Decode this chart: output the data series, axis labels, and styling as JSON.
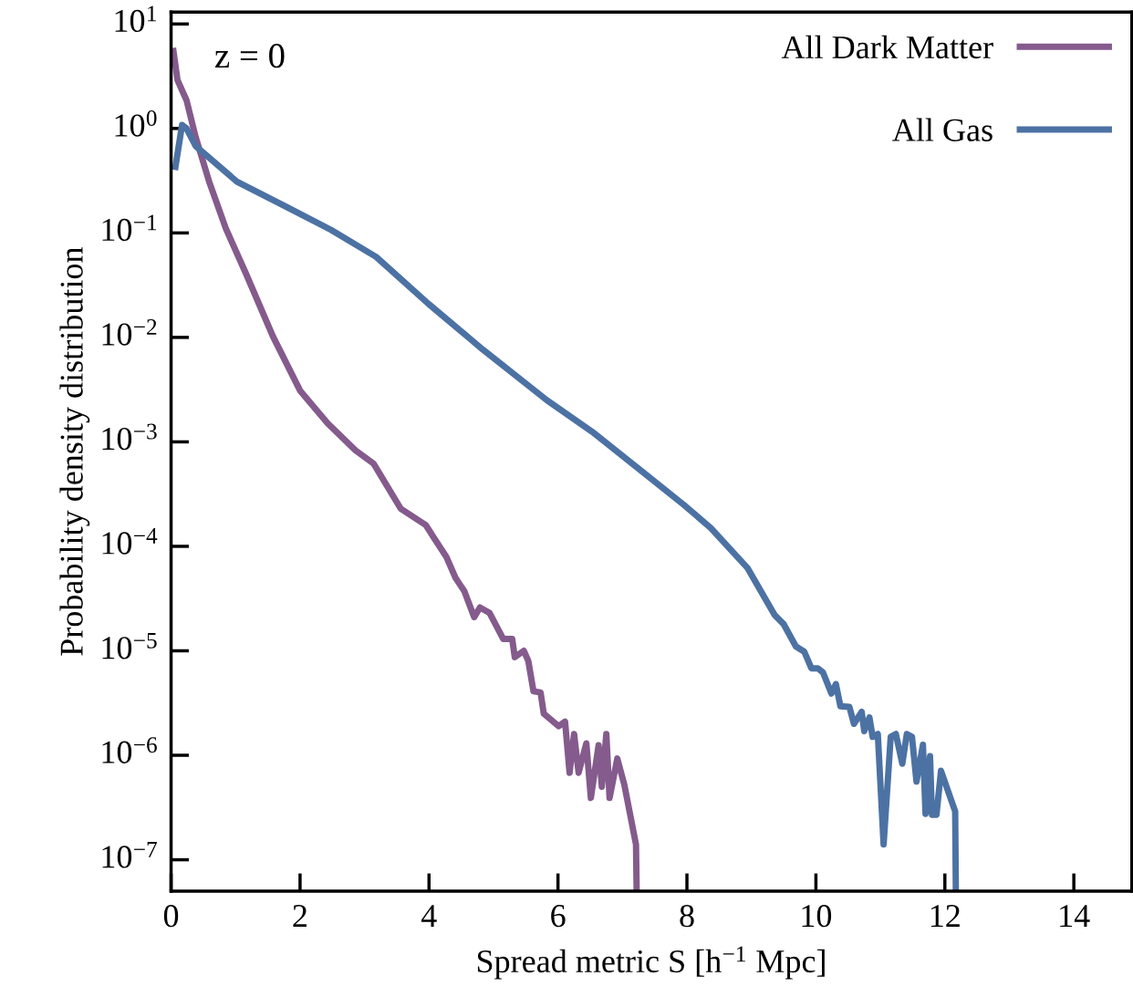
{
  "chart_data": {
    "type": "line",
    "xlabel": "Spread metric S [h$^{−1}$ Mpc]",
    "ylabel": "Probability density distribution",
    "annotations": [
      "z = 0"
    ],
    "log": "y",
    "xlim": [
      0,
      14.9
    ],
    "ylim": [
      5e-08,
      13
    ],
    "xticks": [
      0,
      2,
      4,
      6,
      8,
      10,
      12,
      14
    ],
    "yticks": [
      {
        "value": 1e-07,
        "label": "10$^{−7}$"
      },
      {
        "value": 1e-06,
        "label": "10$^{−6}$"
      },
      {
        "value": 1e-05,
        "label": "10$^{−5}$"
      },
      {
        "value": 0.0001,
        "label": "10$^{−4}$"
      },
      {
        "value": 0.001,
        "label": "10$^{−3}$"
      },
      {
        "value": 0.01,
        "label": "10$^{−2}$"
      },
      {
        "value": 0.1,
        "label": "10$^{−1}$"
      },
      {
        "value": 1,
        "label": "10$^{0}$"
      },
      {
        "value": 10,
        "label": "10$^{1}$"
      }
    ],
    "grid": false,
    "legend": "top right",
    "marker": "none",
    "line_style": "solid",
    "series": [
      {
        "name": "All Dark Matter",
        "color": "#845b8c",
        "x": [
          0.03,
          0.1,
          0.24,
          0.38,
          0.59,
          0.85,
          1.16,
          1.58,
          2.0,
          2.43,
          2.86,
          3.14,
          3.56,
          3.95,
          4.09,
          4.27,
          4.41,
          4.55,
          4.7,
          4.79,
          4.94,
          5.15,
          5.29,
          5.33,
          5.47,
          5.54,
          5.62,
          5.73,
          5.78,
          6.01,
          6.11,
          6.18,
          6.25,
          6.32,
          6.44,
          6.51,
          6.63,
          6.68,
          6.75,
          6.8,
          6.92,
          7.03,
          7.21,
          7.22
        ],
        "values": [
          5.9,
          2.9,
          1.86,
          0.83,
          0.31,
          0.11,
          0.041,
          0.0102,
          0.0031,
          0.0015,
          0.00083,
          0.00062,
          0.00023,
          0.00016,
          0.000117,
          7.9e-05,
          5e-05,
          3.7e-05,
          2.1e-05,
          2.6e-05,
          2.3e-05,
          1.3e-05,
          1.3e-05,
          8.7e-06,
          1e-05,
          8e-06,
          4.1e-06,
          4e-06,
          2.5e-06,
          1.9e-06,
          2.1e-06,
          6.8e-07,
          1.6e-06,
          6.8e-07,
          1.3e-06,
          3.9e-07,
          1.25e-06,
          5e-07,
          1.6e-06,
          3.9e-07,
          9.3e-07,
          5.2e-07,
          1.4e-07,
          5e-08
        ]
      },
      {
        "name": "All Gas",
        "color": "#4c72a4",
        "x": [
          0.06,
          0.17,
          0.24,
          0.38,
          1.02,
          1.77,
          2.48,
          3.18,
          3.99,
          4.84,
          5.83,
          6.53,
          7.24,
          7.95,
          8.37,
          8.94,
          9.36,
          9.5,
          9.69,
          9.82,
          9.93,
          10.03,
          10.11,
          10.24,
          10.31,
          10.38,
          10.52,
          10.59,
          10.71,
          10.75,
          10.83,
          10.88,
          10.96,
          11.05,
          11.16,
          11.24,
          11.34,
          11.41,
          11.49,
          11.56,
          11.66,
          11.7,
          11.77,
          11.8,
          11.87,
          11.94,
          12.16,
          12.17
        ],
        "values": [
          0.4,
          1.08,
          1.0,
          0.68,
          0.31,
          0.18,
          0.107,
          0.059,
          0.021,
          0.0076,
          0.0025,
          0.00125,
          0.00056,
          0.00025,
          0.00015,
          6.2e-05,
          2.2e-05,
          1.8e-05,
          1.1e-05,
          9.8e-06,
          6.8e-06,
          6.8e-06,
          6.2e-06,
          3.9e-06,
          4.8e-06,
          2.95e-06,
          2.9e-06,
          2e-06,
          2.6e-06,
          1.7e-06,
          2.3e-06,
          1.5e-06,
          1.6e-06,
          1.4e-07,
          1.5e-06,
          1.6e-06,
          8.3e-07,
          1.6e-06,
          1.5e-06,
          5.6e-07,
          1.26e-06,
          2.75e-07,
          9.8e-07,
          2.7e-07,
          2.7e-07,
          7.1e-07,
          2.9e-07,
          5e-08
        ]
      }
    ]
  }
}
